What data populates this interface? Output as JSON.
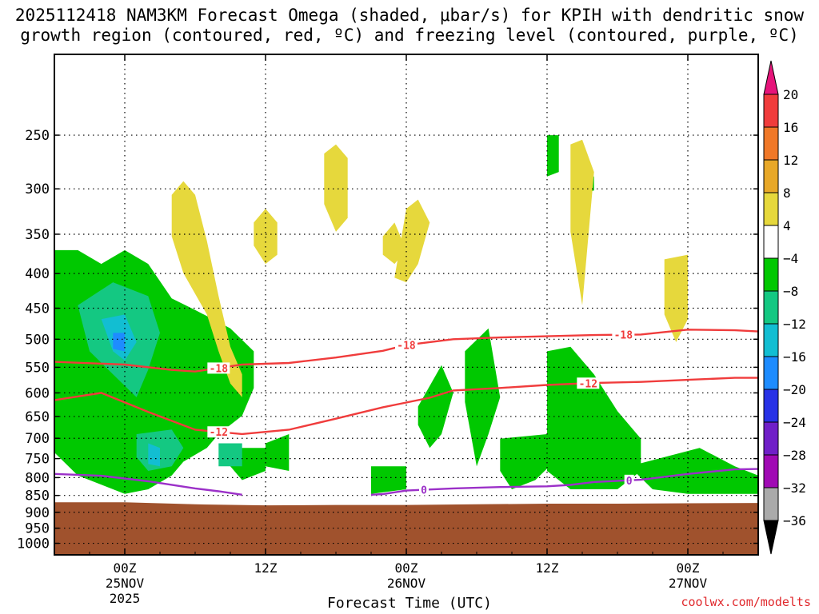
{
  "title_line1": "2025112418 NAM3KM Forecast Omega (shaded, μbar/s) for KPIH with dendritic snow",
  "title_line2": "growth region (contoured, red, ºC) and freezing level (contoured, purple, ºC)",
  "credit": "coolwx.com/modelts",
  "chart_data": {
    "type": "heatmap",
    "xlabel": "Forecast Time (UTC)",
    "x_ticks": [
      {
        "lines": [
          "00Z",
          "25NOV",
          "2025"
        ],
        "hour": 6
      },
      {
        "lines": [
          "12Z"
        ],
        "hour": 18
      },
      {
        "lines": [
          "00Z",
          "26NOV"
        ],
        "hour": 30
      },
      {
        "lines": [
          "12Z"
        ],
        "hour": 42
      },
      {
        "lines": [
          "00Z",
          "27NOV"
        ],
        "hour": 54
      }
    ],
    "x_range_hours": [
      0,
      60
    ],
    "y_ticks": [
      250,
      300,
      350,
      400,
      450,
      500,
      550,
      600,
      650,
      700,
      750,
      800,
      850,
      900,
      950,
      1000
    ],
    "y_range_hpa": [
      190,
      1040
    ],
    "y_scale": "log-pressure",
    "grid": "dotted",
    "ground_level_hpa": [
      [
        0,
        870
      ],
      [
        6,
        870
      ],
      [
        12,
        876
      ],
      [
        18,
        879
      ],
      [
        24,
        878
      ],
      [
        30,
        878
      ],
      [
        36,
        876
      ],
      [
        42,
        874
      ],
      [
        48,
        874
      ],
      [
        54,
        873
      ],
      [
        60,
        872
      ]
    ],
    "colorbar": {
      "labels": [
        "20",
        "16",
        "12",
        "8",
        "4",
        "−4",
        "−8",
        "−12",
        "−16",
        "−20",
        "−24",
        "−28",
        "−32",
        "−36"
      ],
      "bins": [
        {
          "range": "16 to 20",
          "color": "#f03c3c"
        },
        {
          "range": "12 to 16",
          "color": "#f07828"
        },
        {
          "range": "8 to 12",
          "color": "#e8a828"
        },
        {
          "range": "4 to 8",
          "color": "#e6d83c"
        },
        {
          "range": "-4 to 4",
          "color": "#ffffff"
        },
        {
          "range": "-8 to -4",
          "color": "#00c800"
        },
        {
          "range": "-12 to -8",
          "color": "#14c882"
        },
        {
          "range": "-16 to -12",
          "color": "#12bed2"
        },
        {
          "range": "-20 to -16",
          "color": "#1e8cff"
        },
        {
          "range": "-24 to -20",
          "color": "#2832e6"
        },
        {
          "range": "-28 to -24",
          "color": "#7020c8"
        },
        {
          "range": "-32 to -28",
          "color": "#a00ab4"
        },
        {
          "range": "-36 to -32",
          "color": "#aaaaaa"
        }
      ],
      "top_arrow_color": "#e6147a",
      "bottom_arrow_color": "#000000"
    },
    "omega_regions": [
      {
        "value": "-4 to -8",
        "color": "#00c800",
        "pts": [
          [
            0,
            1000
          ],
          [
            0,
            1080
          ],
          [
            0,
            1150
          ],
          [
            0,
            1300
          ],
          [
            0,
            1420
          ],
          [
            0,
            1560
          ],
          [
            0,
            1640
          ],
          [
            2,
            1740
          ],
          [
            6,
            1820
          ],
          [
            8,
            1800
          ],
          [
            10,
            1740
          ],
          [
            11,
            1680
          ],
          [
            13,
            1620
          ],
          [
            14,
            1560
          ],
          [
            16,
            1480
          ],
          [
            17,
            1360
          ],
          [
            17,
            1200
          ],
          [
            15,
            1100
          ],
          [
            12,
            1020
          ],
          [
            10,
            970
          ],
          [
            8,
            820
          ],
          [
            6,
            760
          ],
          [
            4,
            820
          ],
          [
            2,
            760
          ],
          [
            0,
            760
          ]
        ]
      },
      {
        "value": "-4 to -8",
        "color": "#00c800",
        "pts": [
          [
            14,
            1620
          ],
          [
            18,
            1620
          ],
          [
            18,
            1720
          ],
          [
            16,
            1760
          ],
          [
            15,
            1700
          ]
        ]
      },
      {
        "value": "-4 to -8",
        "color": "#00c800",
        "pts": [
          [
            18,
            1600
          ],
          [
            20,
            1560
          ],
          [
            20,
            1720
          ],
          [
            18,
            1700
          ]
        ]
      },
      {
        "value": "-8 to -12",
        "color": "#14c882",
        "pts": [
          [
            2,
            1000
          ],
          [
            5,
            900
          ],
          [
            8,
            960
          ],
          [
            9,
            1120
          ],
          [
            8,
            1280
          ],
          [
            7,
            1400
          ],
          [
            5,
            1300
          ],
          [
            3,
            1200
          ]
        ]
      },
      {
        "value": "-8 to -12",
        "color": "#14c882",
        "pts": [
          [
            7,
            1560
          ],
          [
            10,
            1540
          ],
          [
            11,
            1620
          ],
          [
            10,
            1700
          ],
          [
            8,
            1720
          ],
          [
            7,
            1660
          ]
        ]
      },
      {
        "value": "-8 to -12",
        "color": "#14c882",
        "pts": [
          [
            14,
            1600
          ],
          [
            16,
            1600
          ],
          [
            16,
            1700
          ],
          [
            14,
            1700
          ]
        ]
      },
      {
        "value": "-12 to -16",
        "color": "#12bed2",
        "pts": [
          [
            4,
            1060
          ],
          [
            6,
            1040
          ],
          [
            7,
            1160
          ],
          [
            6,
            1240
          ],
          [
            5,
            1200
          ]
        ]
      },
      {
        "value": "-12 to -16",
        "color": "#12bed2",
        "pts": [
          [
            8,
            1600
          ],
          [
            9,
            1620
          ],
          [
            9,
            1700
          ],
          [
            8,
            1690
          ]
        ]
      },
      {
        "value": "-16 to -20",
        "color": "#1e8cff",
        "pts": [
          [
            5,
            1120
          ],
          [
            6,
            1120
          ],
          [
            6,
            1200
          ],
          [
            5,
            1190
          ]
        ]
      },
      {
        "value": "-4 to -8",
        "color": "#00c800",
        "pts": [
          [
            27,
            1700
          ],
          [
            30,
            1700
          ],
          [
            30,
            1800
          ],
          [
            27,
            1820
          ]
        ]
      },
      {
        "value": "-4 to -8",
        "color": "#00c800",
        "pts": [
          [
            31,
            1440
          ],
          [
            33,
            1260
          ],
          [
            34,
            1380
          ],
          [
            33,
            1560
          ],
          [
            32,
            1620
          ],
          [
            31,
            1520
          ]
        ]
      },
      {
        "value": "-4 to -8",
        "color": "#00c800",
        "pts": [
          [
            35,
            1200
          ],
          [
            37,
            1100
          ],
          [
            38,
            1400
          ],
          [
            37,
            1560
          ],
          [
            36,
            1700
          ],
          [
            35,
            1420
          ]
        ]
      },
      {
        "value": "-4 to -8",
        "color": "#00c800",
        "pts": [
          [
            38,
            1580
          ],
          [
            42,
            1560
          ],
          [
            43,
            1660
          ],
          [
            41,
            1760
          ],
          [
            39,
            1800
          ],
          [
            38,
            1720
          ]
        ]
      },
      {
        "value": "-4 to -8",
        "color": "#00c800",
        "pts": [
          [
            42,
            1200
          ],
          [
            44,
            1180
          ],
          [
            46,
            1300
          ],
          [
            48,
            1460
          ],
          [
            50,
            1580
          ],
          [
            50,
            1720
          ],
          [
            48,
            1800
          ],
          [
            44,
            1800
          ],
          [
            42,
            1720
          ]
        ]
      },
      {
        "value": "-4 to -8",
        "color": "#00c800",
        "pts": [
          [
            49,
            1700
          ],
          [
            55,
            1620
          ],
          [
            58,
            1700
          ],
          [
            60,
            1740
          ],
          [
            60,
            1820
          ],
          [
            54,
            1820
          ],
          [
            51,
            1800
          ]
        ]
      },
      {
        "value": "-4 to -8",
        "color": "#00c800",
        "pts": [
          [
            42,
            260
          ],
          [
            43,
            260
          ],
          [
            43,
            420
          ],
          [
            42,
            440
          ]
        ]
      },
      {
        "value": "-4 to -8",
        "color": "#00c800",
        "pts": [
          [
            45,
            440
          ],
          [
            46,
            440
          ],
          [
            46,
            500
          ],
          [
            45,
            520
          ]
        ]
      },
      {
        "value": "4 to 8",
        "color": "#e6d83c",
        "pts": [
          [
            10,
            520
          ],
          [
            11,
            460
          ],
          [
            12,
            520
          ],
          [
            13,
            720
          ],
          [
            14,
            960
          ],
          [
            15,
            1180
          ],
          [
            16,
            1300
          ],
          [
            16,
            1400
          ],
          [
            15,
            1340
          ],
          [
            14,
            1200
          ],
          [
            13,
            1040
          ],
          [
            11,
            860
          ],
          [
            10,
            700
          ]
        ]
      },
      {
        "value": "4 to 8",
        "color": "#e6d83c",
        "pts": [
          [
            17,
            640
          ],
          [
            18,
            580
          ],
          [
            19,
            640
          ],
          [
            19,
            780
          ],
          [
            18,
            820
          ],
          [
            17,
            740
          ]
        ]
      },
      {
        "value": "4 to 8",
        "color": "#e6d83c",
        "pts": [
          [
            23,
            340
          ],
          [
            24,
            300
          ],
          [
            25,
            360
          ],
          [
            25,
            620
          ],
          [
            24,
            680
          ],
          [
            23,
            560
          ]
        ]
      },
      {
        "value": "4 to 8",
        "color": "#e6d83c",
        "pts": [
          [
            28,
            700
          ],
          [
            29,
            640
          ],
          [
            30,
            760
          ],
          [
            29,
            820
          ],
          [
            28,
            780
          ]
        ]
      },
      {
        "value": "4 to 8",
        "color": "#e6d83c",
        "pts": [
          [
            30,
            580
          ],
          [
            31,
            540
          ],
          [
            32,
            640
          ],
          [
            31,
            820
          ],
          [
            30,
            900
          ],
          [
            29,
            880
          ]
        ]
      },
      {
        "value": "4 to 8",
        "color": "#e6d83c",
        "pts": [
          [
            44,
            300
          ],
          [
            45,
            280
          ],
          [
            46,
            420
          ],
          [
            45,
            1000
          ],
          [
            44,
            680
          ]
        ]
      },
      {
        "value": "4 to 8",
        "color": "#e6d83c",
        "pts": [
          [
            52,
            800
          ],
          [
            54,
            780
          ],
          [
            54,
            1060
          ],
          [
            53,
            1160
          ],
          [
            52,
            1040
          ]
        ]
      }
    ],
    "dgz_contours": [
      {
        "label": "-18",
        "color": "#f03c3c",
        "pts": [
          [
            0,
            540
          ],
          [
            6,
            545
          ],
          [
            10,
            555
          ],
          [
            12,
            558
          ],
          [
            16,
            545
          ],
          [
            20,
            542
          ],
          [
            24,
            532
          ],
          [
            28,
            520
          ],
          [
            30,
            510
          ],
          [
            34,
            500
          ],
          [
            38,
            497
          ],
          [
            42,
            495
          ],
          [
            46,
            493
          ],
          [
            50,
            492
          ],
          [
            54,
            484
          ],
          [
            58,
            485
          ],
          [
            60,
            487
          ]
        ]
      },
      {
        "label": "-12",
        "color": "#f03c3c",
        "pts": [
          [
            0,
            615
          ],
          [
            4,
            600
          ],
          [
            8,
            640
          ],
          [
            12,
            680
          ],
          [
            16,
            690
          ],
          [
            20,
            680
          ],
          [
            24,
            655
          ],
          [
            28,
            630
          ],
          [
            30,
            620
          ],
          [
            32,
            610
          ],
          [
            34,
            595
          ],
          [
            38,
            590
          ],
          [
            42,
            584
          ],
          [
            46,
            580
          ],
          [
            50,
            578
          ],
          [
            54,
            574
          ],
          [
            58,
            570
          ],
          [
            60,
            570
          ]
        ]
      }
    ],
    "freezing_level": [
      {
        "label": "0",
        "color": "#9b30c8",
        "pts": [
          [
            0,
            790
          ],
          [
            4,
            795
          ],
          [
            8,
            810
          ],
          [
            12,
            830
          ],
          [
            14,
            838
          ],
          [
            16,
            848
          ]
        ]
      },
      {
        "label": "0",
        "color": "#9b30c8",
        "pts": [
          [
            27,
            848
          ],
          [
            28,
            846
          ],
          [
            30,
            836
          ],
          [
            34,
            830
          ],
          [
            38,
            826
          ],
          [
            42,
            824
          ],
          [
            44,
            820
          ],
          [
            46,
            812
          ],
          [
            50,
            806
          ],
          [
            54,
            790
          ],
          [
            58,
            778
          ],
          [
            60,
            777
          ]
        ]
      }
    ]
  }
}
